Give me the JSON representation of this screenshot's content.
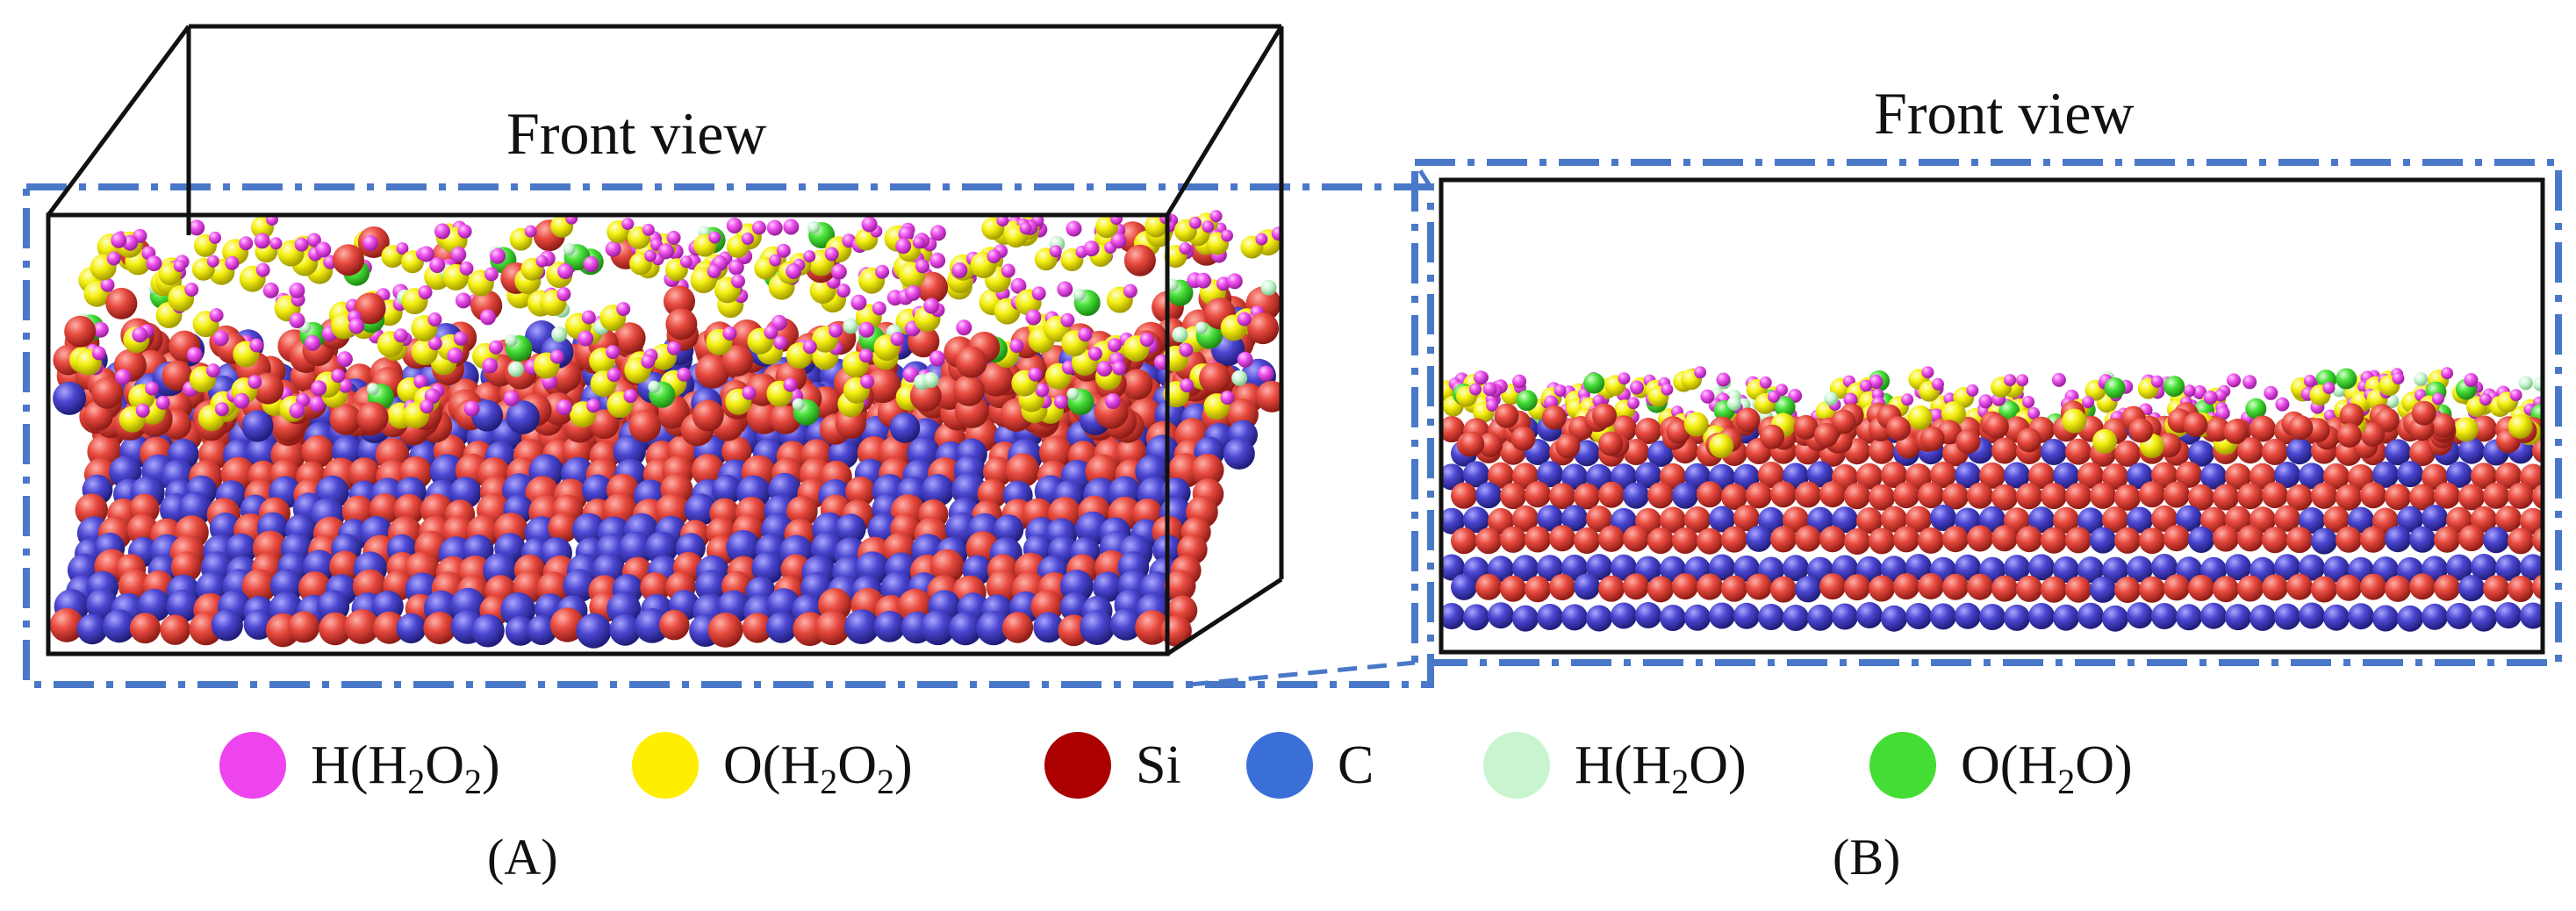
{
  "panels": [
    {
      "id": "A",
      "title": "Front view",
      "label": "(A)"
    },
    {
      "id": "B",
      "title": "Front view",
      "label": "(B)"
    }
  ],
  "legend": [
    {
      "key": "h_h2o2",
      "label_parts": [
        "H(H",
        "2",
        "O",
        "2",
        ")"
      ],
      "color": "#ee44ee"
    },
    {
      "key": "o_h2o2",
      "label_parts": [
        "O(H",
        "2",
        "O",
        "2",
        ")"
      ],
      "color": "#ffee00"
    },
    {
      "key": "si",
      "label_parts": [
        "Si"
      ],
      "color": "#aa0000"
    },
    {
      "key": "c",
      "label_parts": [
        "C"
      ],
      "color": "#3a6fd8"
    },
    {
      "key": "h_h2o",
      "label_parts": [
        "H(H",
        "2",
        "O)"
      ],
      "color": "#c8f5d0"
    },
    {
      "key": "o_h2o",
      "label_parts": [
        "O(H",
        "2",
        "O)"
      ],
      "color": "#44dd33"
    }
  ],
  "colors": {
    "frame_dash": "#4a78c8",
    "box_edge": "#111111",
    "si_atom": "#e0403a",
    "c_atom": "#4a46c8",
    "h2o2_h": "#ee55ee",
    "h2o2_o": "#f2ee10",
    "h2o_h": "#c8f5d0",
    "h2o_o": "#44dd33"
  }
}
